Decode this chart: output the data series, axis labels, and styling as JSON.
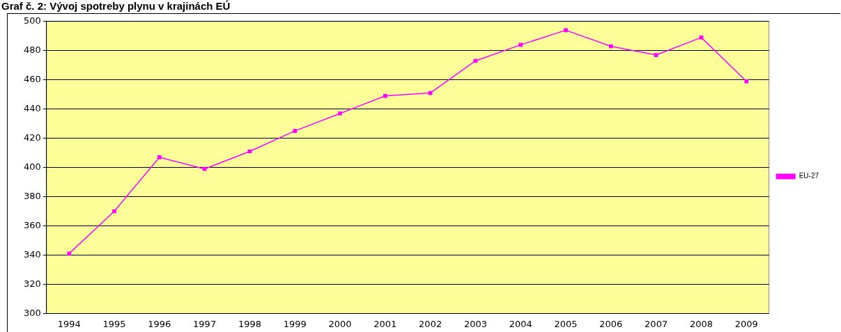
{
  "chart_data": {
    "type": "line",
    "title": "Graf č. 2: Vývoj spotreby plynu v krajinách EÚ",
    "categories": [
      "1994",
      "1995",
      "1996",
      "1997",
      "1998",
      "1999",
      "2000",
      "2001",
      "2002",
      "2003",
      "2004",
      "2005",
      "2006",
      "2007",
      "2008",
      "2009"
    ],
    "series": [
      {
        "name": "EU-27",
        "color": "#ff00ff",
        "values": [
          341,
          370,
          407,
          399,
          411,
          425,
          437,
          449,
          451,
          473,
          484,
          494,
          483,
          477,
          489,
          459
        ]
      }
    ],
    "ylim": [
      300,
      500
    ],
    "yticks": [
      300,
      320,
      340,
      360,
      380,
      400,
      420,
      440,
      460,
      480,
      500
    ],
    "grid": "y",
    "legend": "right",
    "marker": "square",
    "line_style": "solid"
  }
}
